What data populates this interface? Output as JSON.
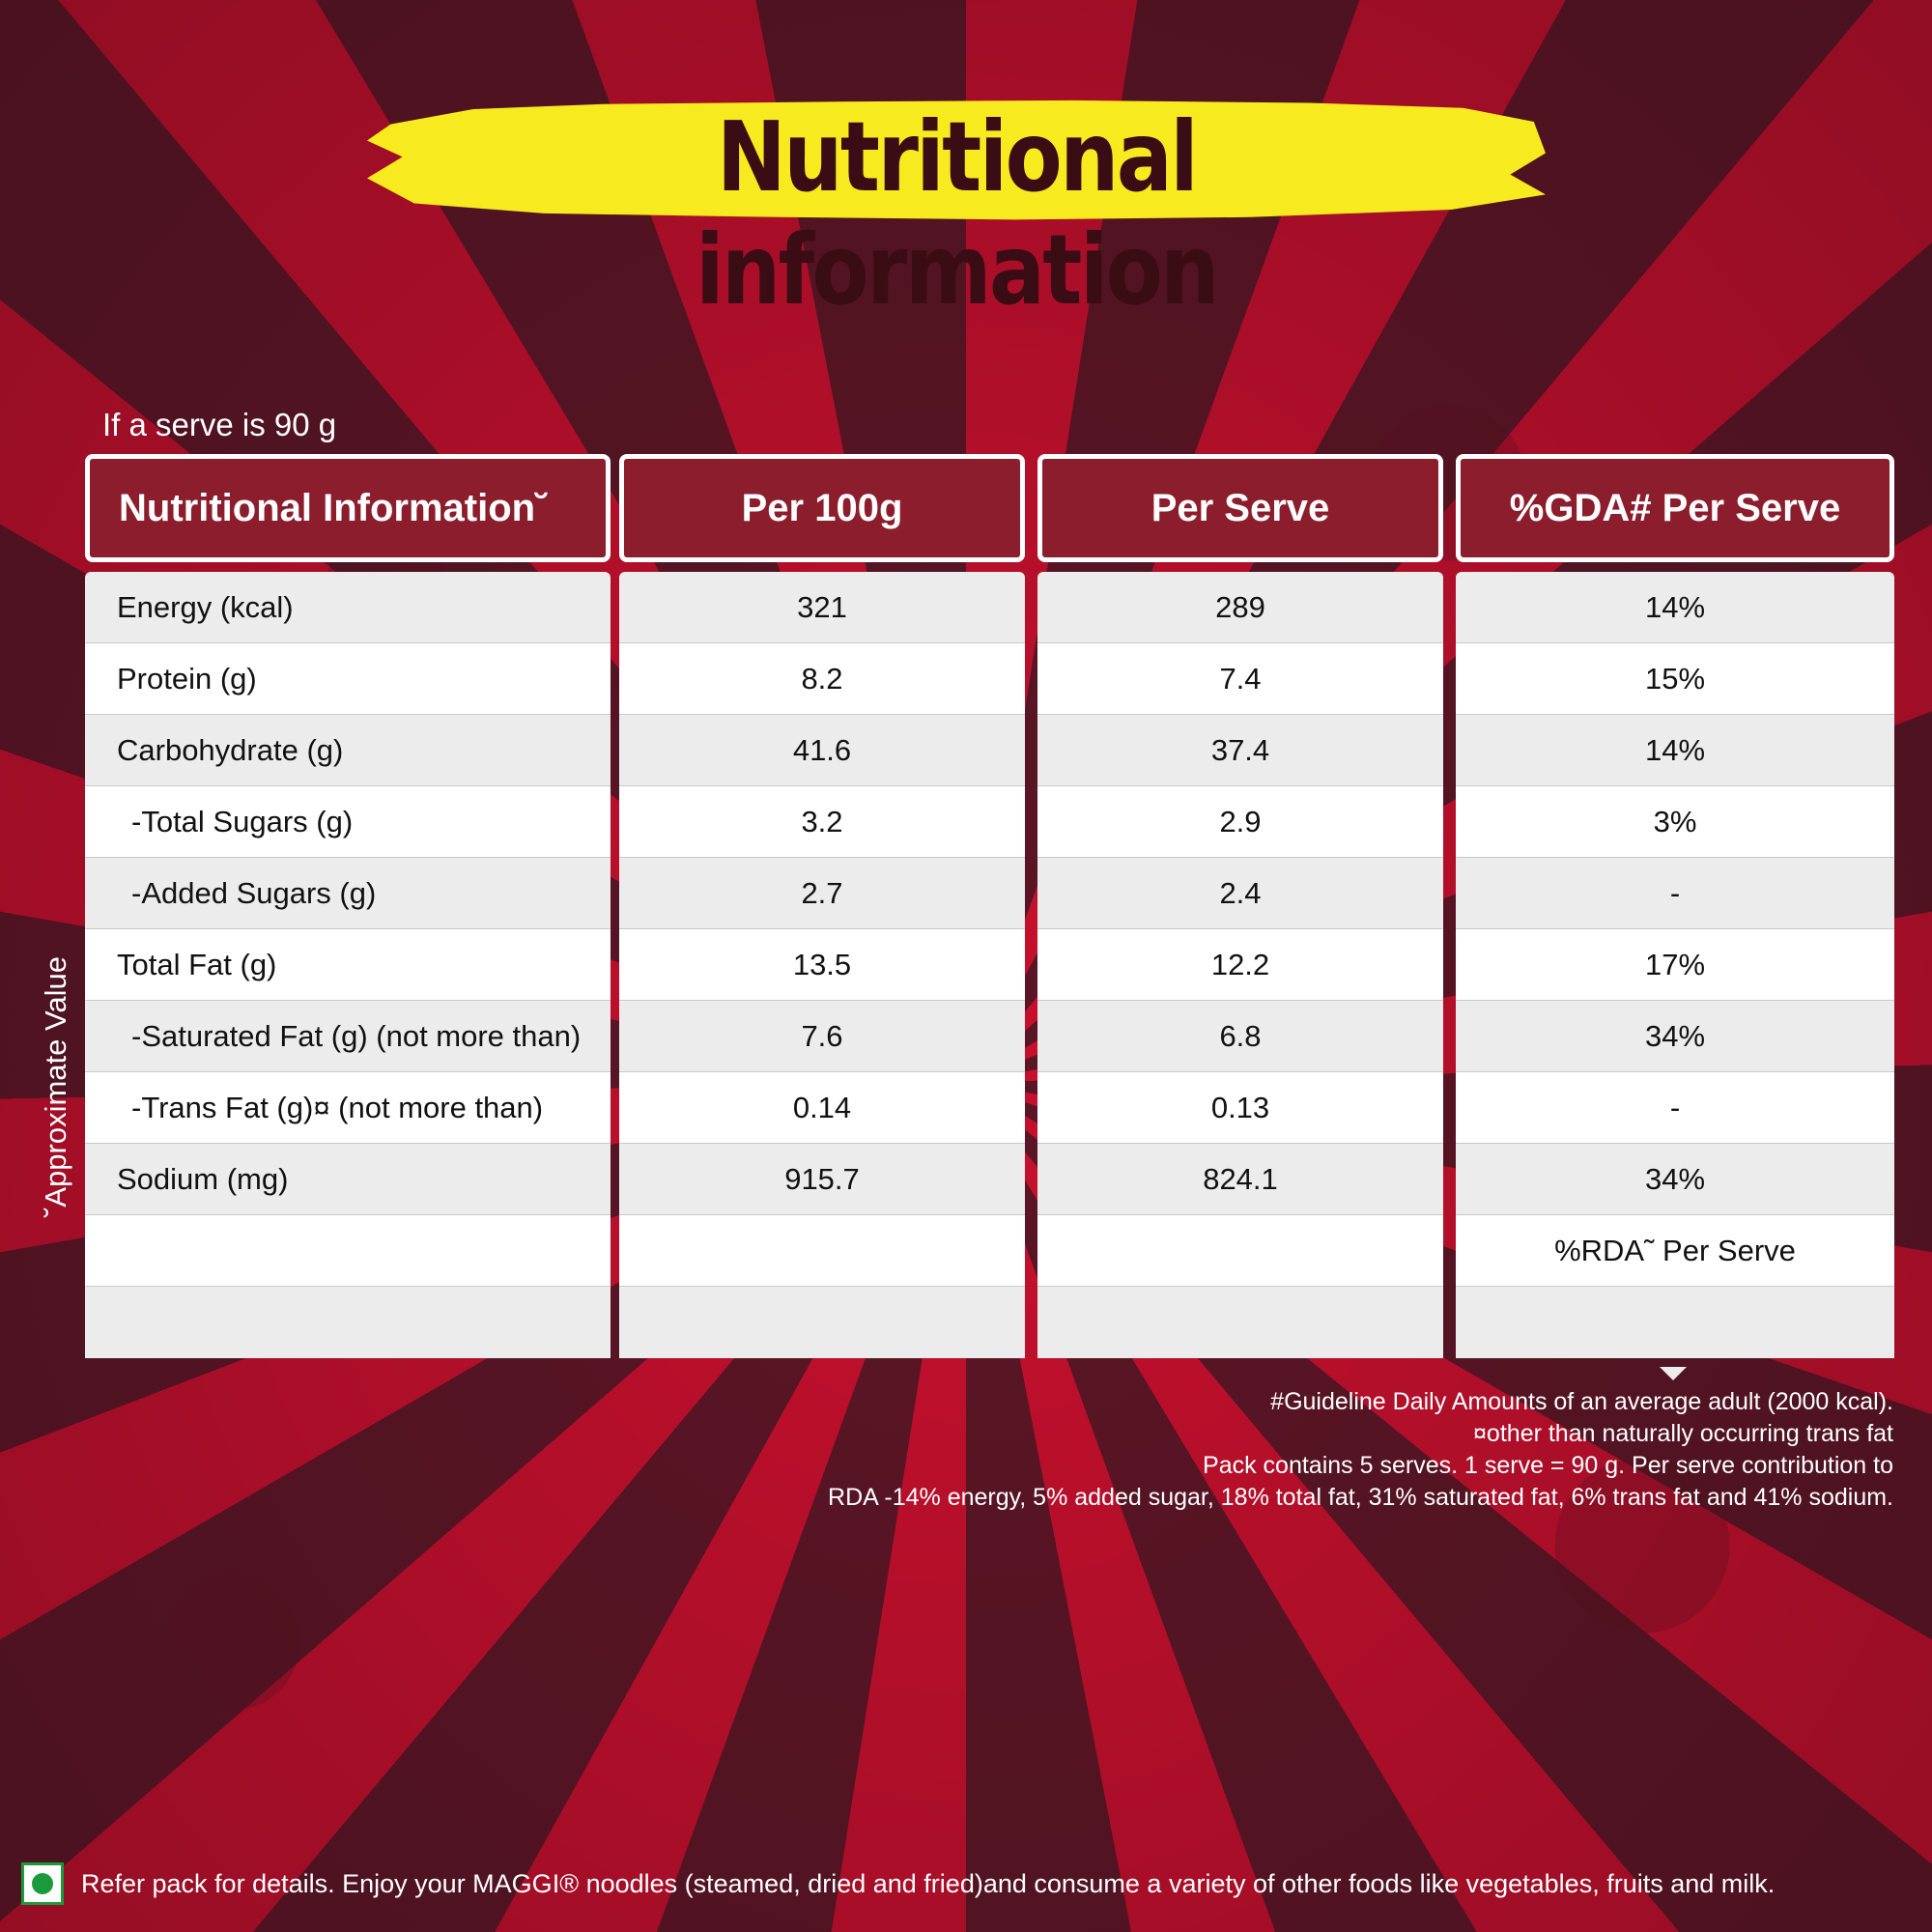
{
  "title": "Nutritional information",
  "serve_note": "If a serve is 90 g",
  "side_note": "˘Approximate Value",
  "columns": [
    "Nutritional Information˘",
    "Per 100g",
    "Per Serve",
    "%GDA# Per Serve"
  ],
  "rows": [
    {
      "name": "Energy (kcal)",
      "per100": "321",
      "perServe": "289",
      "gda": "14%"
    },
    {
      "name": "Protein (g)",
      "per100": "8.2",
      "perServe": "7.4",
      "gda": "15%"
    },
    {
      "name": "Carbohydrate (g)",
      "per100": "41.6",
      "perServe": "37.4",
      "gda": "14%"
    },
    {
      "name": "-Total Sugars (g)",
      "per100": "3.2",
      "perServe": "2.9",
      "gda": "3%"
    },
    {
      "name": "-Added Sugars (g)",
      "per100": "2.7",
      "perServe": "2.4",
      "gda": "-"
    },
    {
      "name": "Total Fat (g)",
      "per100": "13.5",
      "perServe": "12.2",
      "gda": "17%"
    },
    {
      "name": "-Saturated Fat (g) (not more than)",
      "per100": "7.6",
      "perServe": "6.8",
      "gda": "34%"
    },
    {
      "name": "-Trans Fat (g)¤ (not more than)",
      "per100": "0.14",
      "perServe": "0.13",
      "gda": "-"
    },
    {
      "name": "Sodium (mg)",
      "per100": "915.7",
      "perServe": "824.1",
      "gda": "34%"
    },
    {
      "name": "",
      "per100": "",
      "perServe": "",
      "gda": "%RDA˜ Per Serve"
    },
    {
      "name": "",
      "per100": "",
      "perServe": "",
      "gda": ""
    }
  ],
  "footnotes": [
    "#Guideline Daily Amounts of an average adult  (2000 kcal).",
    "¤other than naturally occurring trans fat",
    "Pack contains 5 serves. 1 serve = 90 g.  Per serve contribution to",
    "RDA -14% energy, 5% added sugar, 18% total fat, 31% saturated fat, 6% trans fat and 41% sodium."
  ],
  "bottom_note": "Refer pack for details. Enjoy your MAGGI® noodles (steamed, dried and fried)and consume a variety of other foods like vegetables, fruits and milk.",
  "colors": {
    "ray_red": "#c8102e",
    "ray_dark": "#5c1626",
    "header_bg": "#8c1d2c",
    "title_text": "#3a0c14",
    "brush_yellow": "#f7ea1e",
    "veg_green": "#1a9a3a"
  },
  "icons": [
    "veg-mark-icon"
  ]
}
